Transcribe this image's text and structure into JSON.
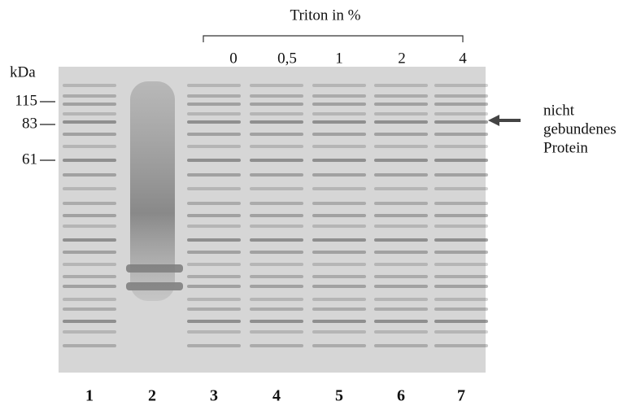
{
  "header": {
    "title": "Triton in %",
    "concentrations": [
      "0",
      "0,5",
      "1",
      "2",
      "4"
    ]
  },
  "markers": {
    "unit": "kDa",
    "labels": [
      "115",
      "83",
      "61"
    ]
  },
  "annotation": {
    "lines": [
      "nicht",
      "gebundenes",
      "Protein"
    ]
  },
  "lanes": [
    "1",
    "2",
    "3",
    "4",
    "5",
    "6",
    "7"
  ]
}
